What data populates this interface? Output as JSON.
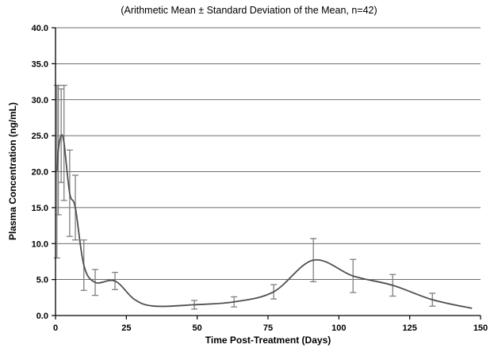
{
  "chart_data": {
    "type": "line",
    "title": "(Arithmetic Mean ± Standard Deviation of the Mean, n=42)",
    "xlabel": "Time Post-Treatment (Days)",
    "ylabel": "Plasma Concentration (ng/mL)",
    "xlim": [
      0,
      150
    ],
    "ylim": [
      0,
      40
    ],
    "x_ticks": [
      0,
      25,
      50,
      75,
      100,
      125,
      150
    ],
    "y_ticks": [
      0,
      5,
      10,
      15,
      20,
      25,
      30,
      35,
      40
    ],
    "y_tick_format": "one_decimal",
    "grid": "horizontal",
    "legend": "none",
    "colors": {
      "line": "#4f4f4f",
      "error_bar": "#7f7f7f",
      "grid": "#3c3c3c",
      "axis": "#000000",
      "background": "#ffffff"
    },
    "series": [
      {
        "name": "Arithmetic Mean",
        "x": [
          0.5,
          1,
          2,
          3,
          5,
          7,
          10,
          14,
          21,
          28,
          35,
          49,
          63,
          77,
          91,
          105,
          119,
          133,
          147
        ],
        "y": [
          20.0,
          23.0,
          25.0,
          24.0,
          17.0,
          15.0,
          7.0,
          4.6,
          4.8,
          2.2,
          1.3,
          1.5,
          1.9,
          3.3,
          7.7,
          5.5,
          4.2,
          2.2,
          1.0
        ],
        "sd": [
          12.0,
          9.0,
          6.5,
          8.0,
          6.0,
          4.5,
          3.5,
          1.8,
          1.2,
          0,
          0,
          0.6,
          0.7,
          1.0,
          3.0,
          2.3,
          1.5,
          0.9,
          0
        ]
      }
    ]
  }
}
